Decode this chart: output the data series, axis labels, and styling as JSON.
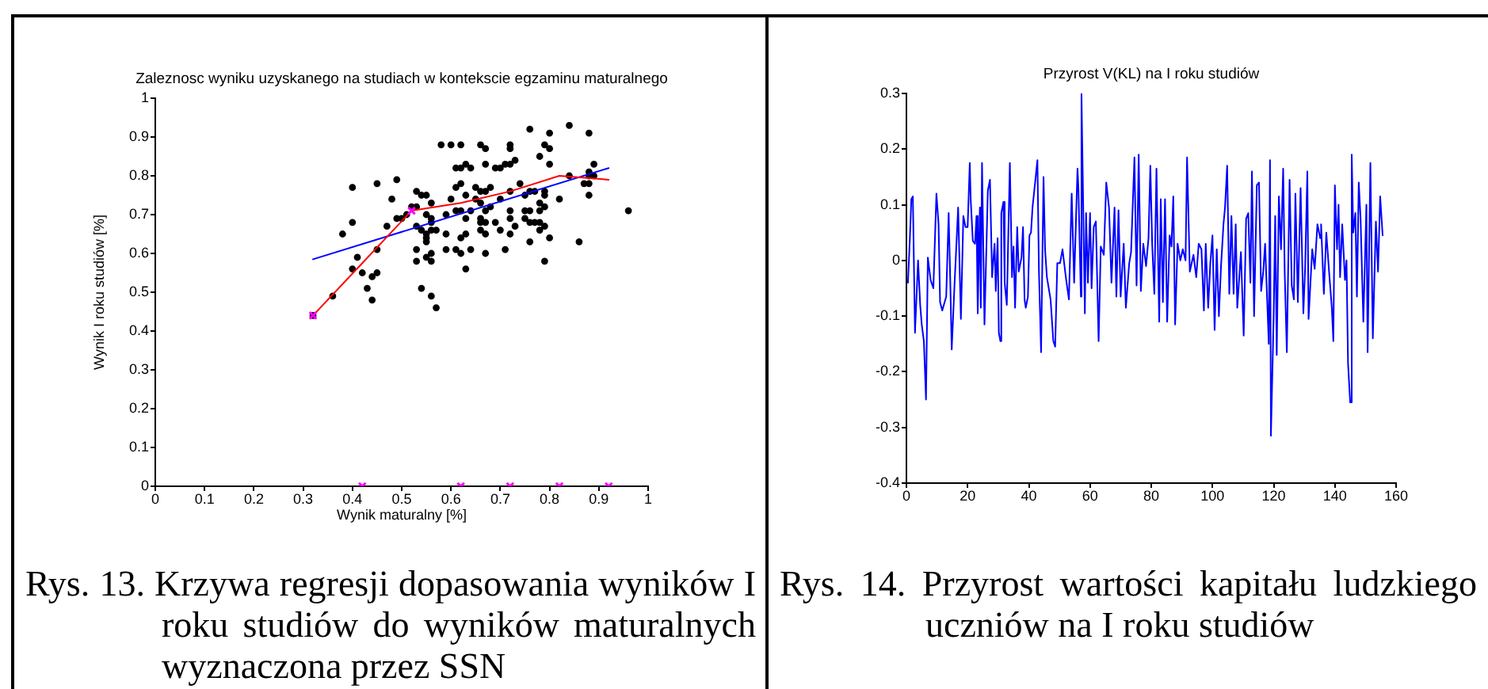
{
  "chart_data": [
    {
      "type": "scatter",
      "title": "Zaleznosc wyniku uzyskanego na studiach w kontekscie egzaminu maturalnego",
      "xlabel": "Wynik maturalny [%]",
      "ylabel": "Wynik I roku studiów [%]",
      "xlim": [
        0,
        1
      ],
      "ylim": [
        0,
        1
      ],
      "xticks": [
        0,
        0.1,
        0.2,
        0.3,
        0.4,
        0.5,
        0.6,
        0.7,
        0.8,
        0.9,
        1
      ],
      "yticks": [
        0,
        0.1,
        0.2,
        0.3,
        0.4,
        0.5,
        0.6,
        0.7,
        0.8,
        0.9,
        1
      ],
      "series": [
        {
          "type": "scatter",
          "marker": "circle",
          "color": "#000000",
          "x": [
            0.76,
            0.84,
            0.8,
            0.88,
            0.79,
            0.58,
            0.6,
            0.62,
            0.66,
            0.72,
            0.67,
            0.72,
            0.8,
            0.78,
            0.73,
            0.63,
            0.8,
            0.89,
            0.61,
            0.62,
            0.64,
            0.67,
            0.69,
            0.7,
            0.71,
            0.72,
            0.88,
            0.88,
            0.84,
            0.89,
            0.49,
            0.45,
            0.4,
            0.61,
            0.62,
            0.65,
            0.68,
            0.66,
            0.67,
            0.74,
            0.72,
            0.77,
            0.87,
            0.88,
            0.88,
            0.53,
            0.54,
            0.55,
            0.48,
            0.52,
            0.53,
            0.56,
            0.6,
            0.63,
            0.65,
            0.66,
            0.7,
            0.75,
            0.76,
            0.79,
            0.79,
            0.79,
            0.78,
            0.78,
            0.76,
            0.75,
            0.72,
            0.61,
            0.62,
            0.64,
            0.67,
            0.68,
            0.82,
            0.96,
            0.51,
            0.55,
            0.56,
            0.49,
            0.5,
            0.56,
            0.59,
            0.63,
            0.66,
            0.67,
            0.66,
            0.69,
            0.72,
            0.73,
            0.75,
            0.76,
            0.77,
            0.78,
            0.79,
            0.78,
            0.8,
            0.86,
            0.38,
            0.4,
            0.47,
            0.53,
            0.54,
            0.55,
            0.56,
            0.57,
            0.55,
            0.55,
            0.59,
            0.63,
            0.67,
            0.72,
            0.7,
            0.66,
            0.62,
            0.59,
            0.61,
            0.64,
            0.67,
            0.71,
            0.76,
            0.62,
            0.45,
            0.53,
            0.56,
            0.53,
            0.55,
            0.56,
            0.63,
            0.79,
            0.41,
            0.4,
            0.42,
            0.45,
            0.44,
            0.43,
            0.44,
            0.54,
            0.56,
            0.36,
            0.57,
            0.32
          ],
          "values": [
            0.92,
            0.93,
            0.91,
            0.91,
            0.88,
            0.88,
            0.88,
            0.88,
            0.88,
            0.88,
            0.87,
            0.87,
            0.87,
            0.85,
            0.84,
            0.83,
            0.83,
            0.83,
            0.82,
            0.82,
            0.82,
            0.83,
            0.82,
            0.82,
            0.83,
            0.83,
            0.81,
            0.8,
            0.8,
            0.8,
            0.79,
            0.78,
            0.77,
            0.77,
            0.78,
            0.77,
            0.77,
            0.76,
            0.76,
            0.78,
            0.76,
            0.76,
            0.78,
            0.78,
            0.75,
            0.76,
            0.75,
            0.75,
            0.74,
            0.72,
            0.72,
            0.73,
            0.74,
            0.75,
            0.74,
            0.73,
            0.74,
            0.75,
            0.76,
            0.76,
            0.75,
            0.72,
            0.73,
            0.71,
            0.71,
            0.71,
            0.71,
            0.71,
            0.71,
            0.71,
            0.71,
            0.72,
            0.74,
            0.71,
            0.7,
            0.7,
            0.69,
            0.69,
            0.69,
            0.68,
            0.7,
            0.69,
            0.69,
            0.68,
            0.68,
            0.68,
            0.69,
            0.67,
            0.69,
            0.68,
            0.68,
            0.68,
            0.67,
            0.66,
            0.64,
            0.63,
            0.65,
            0.68,
            0.67,
            0.67,
            0.66,
            0.65,
            0.66,
            0.66,
            0.64,
            0.63,
            0.65,
            0.65,
            0.65,
            0.65,
            0.66,
            0.66,
            0.64,
            0.61,
            0.61,
            0.61,
            0.6,
            0.61,
            0.63,
            0.6,
            0.61,
            0.61,
            0.6,
            0.58,
            0.59,
            0.58,
            0.56,
            0.58,
            0.59,
            0.56,
            0.55,
            0.55,
            0.54,
            0.51,
            0.48,
            0.51,
            0.49,
            0.49,
            0.46,
            0.44
          ]
        },
        {
          "type": "line",
          "marker": "none",
          "line_style": "solid",
          "color": "#0000ff",
          "x": [
            0.32,
            0.92
          ],
          "values": [
            0.585,
            0.82
          ]
        },
        {
          "type": "line",
          "marker": "none",
          "line_style": "solid",
          "color": "#ff0000",
          "x": [
            0.32,
            0.42,
            0.52,
            0.62,
            0.72,
            0.82,
            0.92
          ],
          "values": [
            0.44,
            0.575,
            0.71,
            0.73,
            0.76,
            0.8,
            0.79
          ]
        },
        {
          "type": "scatter",
          "marker": "cross",
          "color": "#ff00ff",
          "x": [
            0.32,
            0.52,
            0.42,
            0.62,
            0.72,
            0.82,
            0.92
          ],
          "values": [
            0.44,
            0.71,
            0,
            0,
            0,
            0,
            0
          ]
        }
      ],
      "annotations": [
        "Rys. 13. Krzywa regresji dopasowania wyników I roku studiów do wyników maturalnych wyznaczona przez SSN"
      ]
    },
    {
      "type": "line",
      "title": "Przyrost V(KL) na I roku studiów",
      "color": "#0000ff",
      "marker": "none",
      "line_style": "solid",
      "xlim": [
        0,
        160
      ],
      "ylim": [
        -0.4,
        0.3
      ],
      "xticks": [
        0,
        20,
        40,
        60,
        80,
        100,
        120,
        140,
        160
      ],
      "yticks": [
        -0.4,
        -0.3,
        -0.2,
        -0.1,
        0,
        0.1,
        0.2,
        0.3
      ],
      "x": [
        0.5,
        1.2,
        1.6,
        2.1,
        2.8,
        3.8,
        4.5,
        5,
        5.7,
        6.4,
        7,
        7.9,
        8.8,
        9.8,
        10.5,
        11,
        11.7,
        13,
        13.8,
        14.3,
        14.8,
        15.7,
        16.9,
        17.8,
        18.6,
        19.3,
        20,
        20.7,
        21,
        21.7,
        22.4,
        22.9,
        23.3,
        24,
        24.3,
        24.7,
        25.5,
        26.6,
        27.3,
        28,
        28.8,
        29.2,
        29.8,
        30.2,
        30.7,
        31,
        31.7,
        32.1,
        32.8,
        33.8,
        34.5,
        35,
        35.5,
        36.2,
        36.7,
        37.6,
        38.1,
        38.6,
        39,
        39.7,
        40.2,
        40.7,
        41.2,
        42.8,
        43.3,
        44,
        44.8,
        45.3,
        45.9,
        47.1,
        48,
        48.6,
        49.3,
        50.2,
        51,
        52.2,
        53.1,
        54,
        54.8,
        55.9,
        56.2,
        57,
        57.2,
        58.3,
        58.7,
        59.3,
        60,
        60.5,
        61.2,
        61.9,
        62.8,
        63.5,
        64.5,
        65.3,
        66.2,
        67,
        68,
        68.6,
        69.3,
        70,
        71,
        71.7,
        72.8,
        73.4,
        74.5,
        75.2,
        75.9,
        76.6,
        77.4,
        78.3,
        79.1,
        79.7,
        80.3,
        81,
        81.7,
        82.6,
        83.1,
        83.8,
        84.5,
        85.2,
        86,
        86.6,
        87.2,
        87.8,
        88.6,
        89.5,
        90.3,
        91.2,
        91.7,
        92.6,
        93.8,
        94.7,
        95.5,
        96.4,
        97.2,
        97.8,
        98.6,
        99.3,
        100,
        100.7,
        101.4,
        102.1,
        102.8,
        103.6,
        104.1,
        104.8,
        105.5,
        106.2,
        106.9,
        107.6,
        108.1,
        109.3,
        110.2,
        111,
        111.7,
        112.4,
        112.9,
        113.6,
        114.5,
        115.2,
        115.9,
        116.6,
        117.2,
        118.4,
        118.8,
        119.1,
        120,
        120.5,
        121,
        121.7,
        122.4,
        123.1,
        123.6,
        124.3,
        125.2,
        125.9,
        126.6,
        127.1,
        127.9,
        128.8,
        129.7,
        130.3,
        131,
        131.4,
        132.6,
        133.4,
        134.3,
        135.2,
        135.5,
        136.4,
        137.2,
        138.1,
        139,
        139.5,
        140,
        140.7,
        141.2,
        141.7,
        142.4,
        143.3,
        143.8,
        144.3,
        145,
        145.5,
        146,
        146.7,
        147.2,
        147.8,
        148.4,
        149.3,
        150.3,
        150.7,
        151.6,
        152.4,
        153.4,
        154.1,
        154.8,
        155.6
      ],
      "values": [
        -0.04,
        0.05,
        0.11,
        0.115,
        -0.13,
        0,
        -0.08,
        -0.115,
        -0.145,
        -0.25,
        0.005,
        -0.035,
        -0.05,
        0.12,
        0.065,
        -0.075,
        -0.09,
        -0.065,
        0.085,
        -0.03,
        -0.16,
        -0.045,
        0.095,
        -0.105,
        0.08,
        0.06,
        0.06,
        0.175,
        0.11,
        0.035,
        0.03,
        0.08,
        -0.095,
        0.095,
        -0.085,
        0.175,
        -0.115,
        0.125,
        0.145,
        -0.03,
        0.03,
        -0.055,
        0.04,
        -0.13,
        -0.145,
        0.085,
        0.105,
        -0.04,
        -0.08,
        0.175,
        -0.03,
        0.025,
        -0.085,
        0.06,
        -0.02,
        0.005,
        0.06,
        -0.07,
        -0.085,
        -0.065,
        0.045,
        0.05,
        0.095,
        0.18,
        -0.02,
        -0.165,
        0.15,
        0.02,
        -0.03,
        -0.07,
        -0.145,
        -0.155,
        -0.005,
        -0.005,
        0.02,
        -0.035,
        -0.07,
        0.12,
        -0.04,
        0.165,
        0.13,
        -0.065,
        0.3,
        -0.095,
        0.085,
        -0.04,
        0.085,
        -0.05,
        0.06,
        0.07,
        -0.145,
        0.025,
        0.01,
        0.14,
        0.095,
        -0.04,
        0.095,
        -0.065,
        0.09,
        -0.065,
        0.03,
        -0.085,
        -0.005,
        0.015,
        0.185,
        -0.045,
        0.19,
        -0.055,
        0.03,
        -0.01,
        0.04,
        0.17,
        0.03,
        -0.06,
        0.165,
        -0.11,
        0.11,
        -0.075,
        0.11,
        -0.11,
        0.045,
        0.025,
        0.115,
        -0.115,
        0.03,
        0,
        0.02,
        0,
        0.185,
        -0.02,
        0.01,
        -0.03,
        0.03,
        0.02,
        -0.09,
        0.03,
        -0.085,
        -0.005,
        0.045,
        -0.125,
        0.02,
        -0.1,
        -0.01,
        0.065,
        0.095,
        0.17,
        -0.06,
        0.08,
        -0.06,
        0.065,
        -0.085,
        0.015,
        -0.135,
        0.075,
        0.085,
        -0.04,
        0.16,
        -0.1,
        0.135,
        0.14,
        -0.055,
        -0.02,
        0.03,
        -0.15,
        0.18,
        -0.315,
        -0.1,
        0.08,
        -0.17,
        0.115,
        0.02,
        0.165,
        -0.02,
        -0.165,
        0.145,
        -0.045,
        -0.07,
        0.12,
        -0.075,
        0.13,
        -0.095,
        -0.01,
        0.16,
        -0.105,
        0.02,
        -0.015,
        0.065,
        0.04,
        0.065,
        -0.06,
        0.05,
        -0.02,
        -0.085,
        -0.145,
        0.135,
        0.02,
        0.1,
        -0.03,
        0.065,
        -0.035,
        0,
        -0.185,
        -0.255,
        0.19,
        0.05,
        0.085,
        -0.065,
        0.14,
        0.075,
        -0.11,
        0.1,
        -0.165,
        0.175,
        -0.14,
        0.07,
        -0.02,
        0.115,
        0.045
      ],
      "annotations": [
        "Rys. 14. Przyrost wartości kapitału ludzkiego uczniów na I roku studiów"
      ]
    }
  ]
}
